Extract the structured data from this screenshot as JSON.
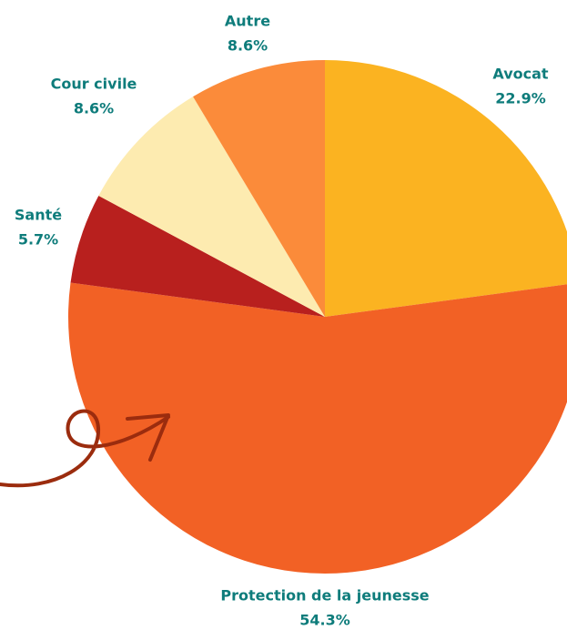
{
  "chart_data": {
    "type": "pie",
    "categories": [
      "Avocat",
      "Protection de la jeunesse",
      "Santé",
      "Cour civile",
      "Autre"
    ],
    "values": [
      22.9,
      54.3,
      5.7,
      8.6,
      8.6
    ],
    "value_labels": [
      "22.9%",
      "54.3%",
      "5.7%",
      "8.6%",
      "8.6%"
    ],
    "colors": [
      "#fbb321",
      "#f26125",
      "#b8201e",
      "#fdebb0",
      "#fb8b3a"
    ]
  }
}
